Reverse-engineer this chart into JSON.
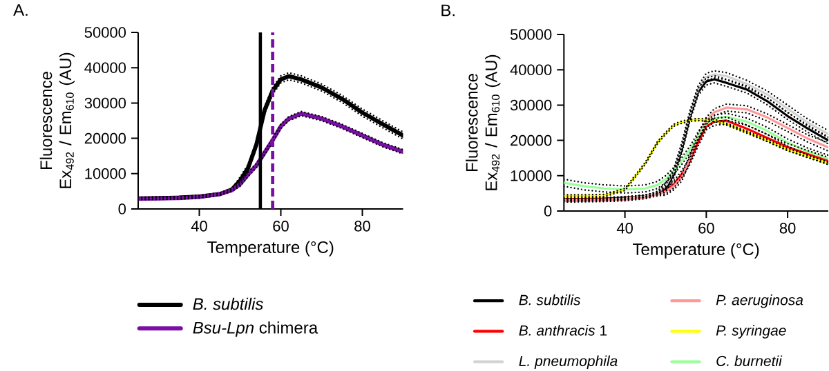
{
  "chart_data": [
    {
      "type": "line",
      "title": "A.",
      "xlabel": "Temperature (°C)",
      "ylabel": "Fluorescence Ex$_{492}$ / Em$_{610}$ (AU)",
      "x": [
        25,
        30,
        35,
        40,
        45,
        48,
        50,
        52,
        54,
        56,
        58,
        60,
        62,
        65,
        70,
        75,
        80,
        85,
        90
      ],
      "xlim": [
        25,
        90
      ],
      "ylim": [
        0,
        50000
      ],
      "xticks": [
        40,
        60,
        80
      ],
      "yticks": [
        0,
        10000,
        20000,
        30000,
        40000,
        50000
      ],
      "legend": "bottom",
      "series": [
        {
          "name": "B. subtilis",
          "color": "#000000",
          "line_style": "solid",
          "values": [
            3000,
            3100,
            3200,
            3500,
            4200,
            5500,
            8000,
            11700,
            18200,
            27900,
            33500,
            36700,
            37600,
            36700,
            34400,
            31200,
            27300,
            24000,
            20800
          ]
        },
        {
          "name": "*Bsu-Lpn* chimera",
          "color": "#7a0fa6",
          "line_style": "solid",
          "values": [
            2900,
            3000,
            3100,
            3400,
            4200,
            5300,
            7000,
            9800,
            12300,
            15900,
            19500,
            23400,
            25600,
            27000,
            25600,
            23400,
            20800,
            18200,
            16200
          ]
        },
        {
          "color": "#000000",
          "line_style": "dotted",
          "values": [
            2700,
            2800,
            2900,
            3200,
            3900,
            5200,
            7000,
            10700,
            17200,
            26900,
            32500,
            35700,
            36600,
            35700,
            33400,
            30200,
            26300,
            23000,
            19800
          ]
        },
        {
          "color": "#000000",
          "line_style": "dotted",
          "values": [
            3300,
            3400,
            3500,
            3800,
            4500,
            5800,
            9000,
            12700,
            19200,
            28900,
            34500,
            37700,
            38600,
            37700,
            35400,
            32200,
            28300,
            25000,
            21800
          ]
        },
        {
          "color": "#000000",
          "line_style": "dotted",
          "values": [
            2600,
            2700,
            2800,
            3100,
            3900,
            5000,
            6400,
            9200,
            11700,
            15300,
            18900,
            22800,
            25000,
            26400,
            25000,
            22800,
            20200,
            17600,
            15600
          ]
        },
        {
          "color": "#000000",
          "line_style": "dotted",
          "values": [
            3200,
            3300,
            3400,
            3700,
            4500,
            5600,
            7600,
            10400,
            12900,
            16500,
            20100,
            24000,
            26200,
            27600,
            26200,
            24000,
            21400,
            18800,
            16800
          ]
        }
      ],
      "ref_lines": [
        {
          "axis": "x",
          "value": 55,
          "color": "#000000",
          "line_style": "solid"
        },
        {
          "axis": "x",
          "value": 58,
          "color": "#7a0fa6",
          "line_style": "dashed"
        }
      ]
    },
    {
      "type": "line",
      "title": "B.",
      "xlabel": "Temperature (°C)",
      "ylabel": "Fluorescence Ex$_{492}$ / Em$_{610}$ (AU)",
      "x": [
        25,
        30,
        35,
        40,
        45,
        48,
        50,
        52,
        54,
        56,
        58,
        60,
        62,
        65,
        70,
        75,
        80,
        85,
        90
      ],
      "xlim": [
        25,
        90
      ],
      "ylim": [
        0,
        50000
      ],
      "xticks": [
        40,
        60,
        80
      ],
      "yticks": [
        0,
        10000,
        20000,
        30000,
        40000,
        50000
      ],
      "legend": "bottom",
      "series": [
        {
          "name": "B. subtilis",
          "color": "#000000",
          "line_style": "solid",
          "values": [
            3300,
            3400,
            3500,
            3800,
            4200,
            5000,
            6400,
            10300,
            17400,
            26600,
            33700,
            36700,
            37300,
            36300,
            34400,
            31100,
            26900,
            23300,
            20000
          ]
        },
        {
          "name": "*B. anthracis* 1",
          "color": "#ff0000",
          "line_style": "solid",
          "values": [
            3300,
            3300,
            3400,
            3600,
            4300,
            5000,
            5800,
            7500,
            10500,
            14200,
            19400,
            24000,
            25300,
            25600,
            23300,
            20700,
            18100,
            16100,
            14200
          ]
        },
        {
          "name": "L. pneumophila",
          "color": "#d3d3d3",
          "line_style": "solid",
          "values": [
            3000,
            3100,
            3200,
            3500,
            4200,
            5300,
            7000,
            11000,
            18500,
            27500,
            34500,
            38000,
            38700,
            38200,
            36000,
            33000,
            29000,
            25000,
            21800
          ]
        },
        {
          "name": "P. aeruginosa",
          "color": "#ff9999",
          "line_style": "solid",
          "values": [
            2800,
            2900,
            3000,
            3200,
            3800,
            4600,
            5500,
            7000,
            9500,
            15000,
            21000,
            25500,
            28000,
            29300,
            28800,
            26500,
            23500,
            20500,
            18000
          ]
        },
        {
          "name": "P. syringae",
          "color": "#ffff00",
          "line_style": "solid",
          "values": [
            4300,
            4300,
            4400,
            6100,
            13500,
            19400,
            22000,
            24300,
            25200,
            25700,
            25900,
            25800,
            25700,
            24600,
            22300,
            20000,
            17400,
            15500,
            13500
          ]
        },
        {
          "name": "C. burnetii",
          "color": "#99ff99",
          "line_style": "solid",
          "values": [
            8000,
            7000,
            6400,
            6100,
            6400,
            7400,
            9000,
            11300,
            14200,
            17400,
            21400,
            24600,
            26200,
            26700,
            25300,
            22700,
            19400,
            16800,
            14800
          ]
        },
        {
          "color": "#000000",
          "line_style": "dotted",
          "values": [
            3000,
            3100,
            3200,
            3500,
            3900,
            4700,
            5400,
            9300,
            16400,
            25600,
            32700,
            35700,
            36300,
            35300,
            33400,
            30100,
            25900,
            22300,
            19000
          ]
        },
        {
          "color": "#000000",
          "line_style": "dotted",
          "values": [
            3600,
            3700,
            3800,
            4100,
            4500,
            5300,
            7400,
            11300,
            18400,
            27600,
            34700,
            37700,
            38300,
            37300,
            35400,
            32100,
            27900,
            24300,
            21000
          ]
        },
        {
          "color": "#000000",
          "line_style": "dotted",
          "values": [
            3000,
            3000,
            3100,
            3300,
            4000,
            4700,
            4800,
            6500,
            9500,
            13200,
            18400,
            23000,
            24300,
            24600,
            22300,
            19700,
            17100,
            15100,
            13200
          ]
        },
        {
          "color": "#000000",
          "line_style": "dotted",
          "values": [
            3600,
            3600,
            3700,
            3900,
            4600,
            5300,
            6800,
            8500,
            11500,
            15200,
            20400,
            25000,
            26300,
            26600,
            24300,
            21700,
            19100,
            17100,
            15200
          ]
        },
        {
          "color": "#000000",
          "line_style": "dotted",
          "values": [
            2700,
            2800,
            2900,
            3200,
            3900,
            5000,
            6000,
            10000,
            17500,
            26500,
            33500,
            37000,
            37700,
            37200,
            35000,
            32000,
            28000,
            24000,
            20800
          ]
        },
        {
          "color": "#000000",
          "line_style": "dotted",
          "values": [
            3300,
            3400,
            3500,
            3800,
            4500,
            5600,
            8000,
            12000,
            19500,
            28500,
            35500,
            39000,
            39700,
            39200,
            37000,
            34000,
            30000,
            26000,
            22800
          ]
        },
        {
          "color": "#000000",
          "line_style": "dotted",
          "values": [
            2500,
            2600,
            2700,
            2900,
            3500,
            4300,
            4500,
            6000,
            8500,
            14000,
            20000,
            24500,
            27000,
            28300,
            27800,
            25500,
            22500,
            19500,
            17000
          ]
        },
        {
          "color": "#000000",
          "line_style": "dotted",
          "values": [
            3100,
            3200,
            3300,
            3500,
            4100,
            4900,
            6500,
            8000,
            10500,
            16000,
            22000,
            26500,
            29000,
            30300,
            29800,
            27500,
            24500,
            21500,
            19400
          ]
        },
        {
          "color": "#000000",
          "line_style": "dotted",
          "values": [
            4000,
            4000,
            4100,
            5800,
            13200,
            19100,
            21700,
            24000,
            24900,
            25400,
            25600,
            25500,
            25400,
            24300,
            22000,
            19700,
            17100,
            15200,
            13200
          ]
        },
        {
          "color": "#000000",
          "line_style": "dotted",
          "values": [
            4600,
            4600,
            4700,
            6400,
            13800,
            19700,
            22300,
            24600,
            25500,
            26000,
            26200,
            26100,
            26000,
            24900,
            22600,
            20300,
            17700,
            15800,
            13800
          ]
        },
        {
          "color": "#000000",
          "line_style": "dotted",
          "values": [
            7000,
            6000,
            5400,
            5100,
            5400,
            6400,
            8000,
            10300,
            13200,
            16400,
            20400,
            23600,
            25200,
            25700,
            24300,
            21700,
            18400,
            15800,
            13800
          ]
        },
        {
          "color": "#000000",
          "line_style": "dotted",
          "values": [
            9000,
            8000,
            7400,
            7100,
            7400,
            8400,
            10000,
            12300,
            15200,
            18400,
            22400,
            25600,
            27200,
            27700,
            26300,
            23700,
            20400,
            17800,
            15800
          ]
        }
      ]
    }
  ]
}
